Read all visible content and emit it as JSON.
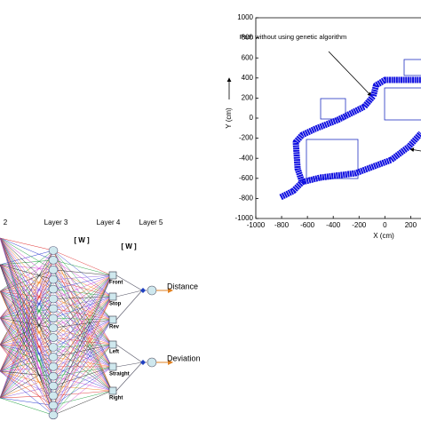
{
  "chart_data": {
    "type": "line",
    "xlabel": "X (cm)",
    "ylabel": "Y (cm)",
    "xlim": [
      -1000,
      280
    ],
    "ylim": [
      -1000,
      1000
    ],
    "xticks": [
      -1000,
      -800,
      -600,
      -400,
      -200,
      0,
      200
    ],
    "yticks": [
      -1000,
      -800,
      -600,
      -400,
      -200,
      0,
      200,
      400,
      600,
      800,
      1000
    ],
    "annotations": [
      "Path without using genetic algorithm"
    ],
    "series": [
      {
        "color": "#1010e0",
        "x": [
          -807,
          -710,
          -641,
          -676,
          -690,
          -641,
          -538,
          -365,
          -158,
          -89,
          -68,
          0,
          280
        ],
        "values": [
          -788,
          -726,
          -637,
          -504,
          -239,
          -168,
          -106,
          -18,
          115,
          221,
          327,
          380,
          380
        ]
      },
      {
        "color": "#1010e0",
        "x": [
          -641,
          -503,
          -227,
          49,
          187,
          280
        ],
        "values": [
          -637,
          -593,
          -549,
          -416,
          -283,
          -150
        ]
      }
    ]
  },
  "diagram": {
    "layer_labels": [
      "2",
      "Layer 3",
      "Layer 4",
      "Layer 5"
    ],
    "weight_labels": [
      "[ W ]",
      "[ W ]"
    ],
    "outputs": [
      "Front",
      "Stop",
      "Rev",
      "Left",
      "Straight",
      "Right"
    ],
    "targets": [
      "Distance",
      "Deviation"
    ]
  }
}
